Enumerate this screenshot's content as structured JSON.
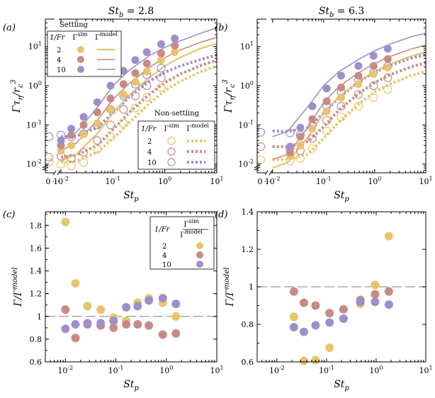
{
  "colors": {
    "fr2": "#e8c46e",
    "fr4": "#c98a86",
    "fr10": "#9d8fcb"
  },
  "fr_values": [
    "2",
    "4",
    "10"
  ],
  "titles": [
    "St",
    "b",
    "= 2.8",
    "= 6.3"
  ],
  "legend": {
    "settling_title": "Settling",
    "nonsettling_title": "Non-settling",
    "col_fr": "1/Fr",
    "col_sim": "Γ",
    "sim_sup": "sim",
    "col_model": "Γ",
    "model_sup": "model",
    "ratio_num": "Γ",
    "ratio_den": "Γ"
  },
  "chart_data": [
    {
      "panel": "(a)",
      "type": "scatter",
      "xscale": "log",
      "yscale": "log",
      "xlim": [
        0.005,
        10
      ],
      "ylim": [
        0.006,
        50
      ],
      "xticks": [
        0.01,
        0.1,
        1,
        10
      ],
      "xtick_labels": [
        "10",
        "10",
        "10",
        "10"
      ],
      "xtick_exps": [
        "-2",
        "-1",
        "0",
        "1"
      ],
      "yticks": [
        0.01,
        0.1,
        1,
        10
      ],
      "ytick_labels": [
        "10",
        "10",
        "10",
        "10"
      ],
      "ytick_exps": [
        "-2",
        "-1",
        "0",
        "1"
      ],
      "zero_label": "0",
      "xlabel": "St",
      "xlabel_sub": "p",
      "ylabel": "Γτ",
      "ylabel_sub": "η",
      "ylabel_tail": "/r",
      "ylabel_sub2": "c",
      "ylabel_sup": "3",
      "settling_x": [
        0.01,
        0.0158,
        0.0273,
        0.05,
        0.09,
        0.16,
        0.27,
        0.45,
        0.85,
        1.55
      ],
      "series_settling_sim": [
        {
          "fr": "2",
          "y": [
            0.022,
            0.03,
            0.058,
            0.11,
            0.25,
            0.6,
            1.25,
            2.3,
            4.5,
            7.2
          ]
        },
        {
          "fr": "4",
          "y": [
            0.03,
            0.055,
            0.1,
            0.21,
            0.47,
            1.1,
            2.1,
            3.7,
            6.7,
            10.5
          ]
        },
        {
          "fr": "10",
          "y": [
            0.04,
            0.08,
            0.16,
            0.38,
            1.0,
            2.4,
            4.5,
            7.2,
            11.5,
            16.0
          ]
        }
      ],
      "series_settling_model": [
        {
          "fr": "2",
          "x": [
            0.01,
            0.02,
            0.05,
            0.1,
            0.2,
            0.5,
            1,
            2,
            5,
            10
          ],
          "y": [
            0.012,
            0.018,
            0.06,
            0.2,
            0.55,
            1.6,
            3.2,
            5.3,
            9.0,
            12.0
          ]
        },
        {
          "fr": "4",
          "x": [
            0.01,
            0.02,
            0.05,
            0.1,
            0.2,
            0.5,
            1,
            2,
            5,
            10
          ],
          "y": [
            0.022,
            0.035,
            0.13,
            0.45,
            1.1,
            2.9,
            5.2,
            8.2,
            13.0,
            17.0
          ]
        },
        {
          "fr": "10",
          "x": [
            0.01,
            0.02,
            0.05,
            0.1,
            0.2,
            0.5,
            1,
            2,
            5,
            10
          ],
          "y": [
            0.04,
            0.065,
            0.28,
            1.0,
            2.4,
            5.8,
            9.5,
            14.0,
            22.0,
            30.0
          ]
        }
      ],
      "nonsettling_x": [
        0,
        0.01,
        0.0158,
        0.0273,
        0.05,
        0.09,
        0.16,
        0.27,
        0.45,
        0.85
      ],
      "series_nonsettling_sim": [
        {
          "fr": "2",
          "y": [
            0.011,
            0.01,
            0.009,
            0.011,
            0.024,
            0.05,
            0.11,
            0.27,
            0.5,
            0.9
          ]
        },
        {
          "fr": "4",
          "y": [
            0.015,
            0.016,
            0.014,
            0.02,
            0.04,
            0.1,
            0.25,
            0.55,
            1.0,
            1.6
          ]
        },
        {
          "fr": "10",
          "y": [
            0.05,
            0.055,
            0.05,
            0.06,
            0.1,
            0.25,
            0.55,
            1.1,
            1.9,
            2.8
          ]
        }
      ],
      "series_nonsettling_model": [
        {
          "fr": "2",
          "x": [
            0.01,
            0.02,
            0.05,
            0.1,
            0.2,
            0.5,
            1,
            2,
            5,
            10
          ],
          "y": [
            0.011,
            0.012,
            0.02,
            0.045,
            0.11,
            0.35,
            0.75,
            1.3,
            2.3,
            3.2
          ]
        },
        {
          "fr": "4",
          "x": [
            0.01,
            0.02,
            0.05,
            0.1,
            0.2,
            0.5,
            1,
            2,
            5,
            10
          ],
          "y": [
            0.015,
            0.017,
            0.03,
            0.075,
            0.2,
            0.6,
            1.2,
            2.0,
            3.3,
            4.5
          ]
        },
        {
          "fr": "10",
          "x": [
            0.01,
            0.02,
            0.05,
            0.1,
            0.2,
            0.5,
            1,
            2,
            5,
            10
          ],
          "y": [
            0.05,
            0.052,
            0.085,
            0.2,
            0.5,
            1.3,
            2.2,
            3.2,
            4.7,
            6.0
          ]
        }
      ]
    },
    {
      "panel": "(b)",
      "type": "scatter",
      "xscale": "log",
      "yscale": "log",
      "xlim": [
        0.005,
        10
      ],
      "ylim": [
        0.006,
        50
      ],
      "xticks": [
        0.01,
        0.1,
        1,
        10
      ],
      "xtick_labels": [
        "10",
        "10",
        "10",
        "10"
      ],
      "xtick_exps": [
        "-2",
        "-1",
        "0",
        "1"
      ],
      "yticks": [
        0.01,
        0.1,
        1,
        10
      ],
      "ytick_labels": [
        "10",
        "10",
        "10",
        "10"
      ],
      "ytick_exps": [
        "-2",
        "-1",
        "0",
        "1"
      ],
      "zero_label": "0",
      "xlabel": "St",
      "xlabel_sub": "p",
      "ylabel": "Γτ",
      "ylabel_sub": "η",
      "ylabel_tail": "/r",
      "ylabel_sub2": "c",
      "ylabel_sup": "3",
      "settling_x": [
        0.022,
        0.035,
        0.06,
        0.115,
        0.22,
        0.48,
        0.95,
        1.8
      ],
      "series_settling_sim": [
        {
          "fr": "2",
          "y": [
            0.016,
            0.03,
            0.08,
            0.22,
            0.5,
            1.1,
            2.0,
            2.9
          ]
        },
        {
          "fr": "4",
          "y": [
            0.02,
            0.05,
            0.14,
            0.4,
            0.9,
            1.8,
            3.2,
            4.8
          ]
        },
        {
          "fr": "10",
          "y": [
            0.028,
            0.085,
            0.3,
            0.85,
            1.8,
            3.2,
            5.8,
            8.8
          ]
        }
      ],
      "series_settling_model": [
        {
          "fr": "2",
          "x": [
            0.01,
            0.02,
            0.05,
            0.1,
            0.2,
            0.5,
            1,
            2,
            5,
            10
          ],
          "y": [
            0.008,
            0.011,
            0.05,
            0.2,
            0.52,
            1.3,
            2.3,
            3.6,
            5.6,
            7.2
          ]
        },
        {
          "fr": "4",
          "x": [
            0.01,
            0.02,
            0.05,
            0.1,
            0.2,
            0.5,
            1,
            2,
            5,
            10
          ],
          "y": [
            0.013,
            0.018,
            0.09,
            0.37,
            0.95,
            2.2,
            3.7,
            5.6,
            8.5,
            11.0
          ]
        },
        {
          "fr": "10",
          "x": [
            0.01,
            0.02,
            0.05,
            0.1,
            0.2,
            0.5,
            1,
            2,
            5,
            10
          ],
          "y": [
            0.05,
            0.07,
            0.3,
            1.0,
            2.3,
            4.8,
            7.8,
            11.5,
            17.5,
            22.0
          ]
        }
      ],
      "nonsettling_x": [
        0,
        0.022,
        0.035,
        0.06,
        0.115,
        0.22,
        0.48,
        0.95,
        1.8
      ],
      "series_nonsettling_sim": [
        {
          "fr": "2",
          "y": [
            0.013,
            0.012,
            0.014,
            0.025,
            0.07,
            0.16,
            0.3,
            0.5,
            0.8
          ]
        },
        {
          "fr": "4",
          "y": [
            0.028,
            0.025,
            0.022,
            0.045,
            0.13,
            0.3,
            0.6,
            1.0,
            1.6
          ]
        },
        {
          "fr": "10",
          "y": [
            0.065,
            0.062,
            0.055,
            0.1,
            0.3,
            0.7,
            1.4,
            2.2,
            3.1
          ]
        }
      ],
      "series_nonsettling_model": [
        {
          "fr": "2",
          "x": [
            0.01,
            0.02,
            0.05,
            0.1,
            0.2,
            0.5,
            1,
            2,
            5,
            10
          ],
          "y": [
            0.013,
            0.013,
            0.018,
            0.045,
            0.12,
            0.35,
            0.7,
            1.1,
            1.8,
            2.3
          ]
        },
        {
          "fr": "4",
          "x": [
            0.01,
            0.02,
            0.05,
            0.1,
            0.2,
            0.5,
            1,
            2,
            5,
            10
          ],
          "y": [
            0.028,
            0.028,
            0.038,
            0.09,
            0.24,
            0.65,
            1.2,
            1.9,
            3.0,
            3.8
          ]
        },
        {
          "fr": "10",
          "x": [
            0.01,
            0.02,
            0.05,
            0.1,
            0.2,
            0.5,
            1,
            2,
            5,
            10
          ],
          "y": [
            0.07,
            0.068,
            0.085,
            0.2,
            0.5,
            1.3,
            2.2,
            3.3,
            5.0,
            6.2
          ]
        }
      ]
    },
    {
      "panel": "(c)",
      "type": "scatter",
      "xscale": "log",
      "yscale": "linear",
      "xlim": [
        0.004,
        10
      ],
      "ylim": [
        0.6,
        1.92
      ],
      "xticks": [
        0.01,
        0.1,
        1,
        10
      ],
      "xtick_labels": [
        "10",
        "10",
        "10",
        "10"
      ],
      "xtick_exps": [
        "-2",
        "-1",
        "0",
        "1"
      ],
      "yticks": [
        0.6,
        0.8,
        1,
        1.2,
        1.4,
        1.6,
        1.8
      ],
      "ytick_labels": [
        "0.6",
        "0.8",
        "1",
        "1.2",
        "1.4",
        "1.6",
        "1.8"
      ],
      "ref_line": 1,
      "xlabel": "St",
      "xlabel_sub": "p",
      "ylabel": "Γ/Γ",
      "ylabel_sup": "model",
      "x": [
        0.01,
        0.0158,
        0.0273,
        0.05,
        0.09,
        0.16,
        0.27,
        0.45,
        0.85,
        1.55
      ],
      "series": [
        {
          "fr": "2",
          "y": [
            1.83,
            1.29,
            1.09,
            1.06,
            0.99,
            0.96,
            1.12,
            1.16,
            1.12,
            1.0
          ]
        },
        {
          "fr": "4",
          "y": [
            1.06,
            0.81,
            0.94,
            0.92,
            0.9,
            0.93,
            0.93,
            0.92,
            0.84,
            0.85
          ]
        },
        {
          "fr": "10",
          "y": [
            0.89,
            0.93,
            0.93,
            0.94,
            0.96,
            1.08,
            1.09,
            1.14,
            1.16,
            1.11
          ]
        }
      ]
    },
    {
      "panel": "(d)",
      "type": "scatter",
      "xscale": "log",
      "yscale": "linear",
      "xlim": [
        0.004,
        10
      ],
      "ylim": [
        0.6,
        1.4
      ],
      "xticks": [
        0.01,
        0.1,
        1,
        10
      ],
      "xtick_labels": [
        "10",
        "10",
        "10",
        "10"
      ],
      "xtick_exps": [
        "-2",
        "-1",
        "0",
        "1"
      ],
      "yticks": [
        0.6,
        0.8,
        1,
        1.2,
        1.4
      ],
      "ytick_labels": [
        "0.6",
        "0.8",
        "1",
        "1.2",
        "1.4"
      ],
      "ref_line": 1,
      "xlabel": "St",
      "xlabel_sub": "p",
      "ylabel": "Γ/Γ",
      "ylabel_sup": "model",
      "x": [
        0.022,
        0.035,
        0.06,
        0.115,
        0.22,
        0.48,
        0.95,
        1.8
      ],
      "series": [
        {
          "fr": "2",
          "y": [
            0.84,
            0.605,
            0.61,
            0.675,
            0.83,
            0.91,
            1.01,
            1.27
          ]
        },
        {
          "fr": "4",
          "y": [
            0.975,
            0.915,
            0.9,
            0.86,
            0.88,
            0.93,
            0.96,
            0.975
          ]
        },
        {
          "fr": "10",
          "y": [
            0.785,
            0.76,
            0.795,
            0.81,
            0.83,
            0.92,
            0.92,
            0.905
          ]
        }
      ]
    }
  ]
}
